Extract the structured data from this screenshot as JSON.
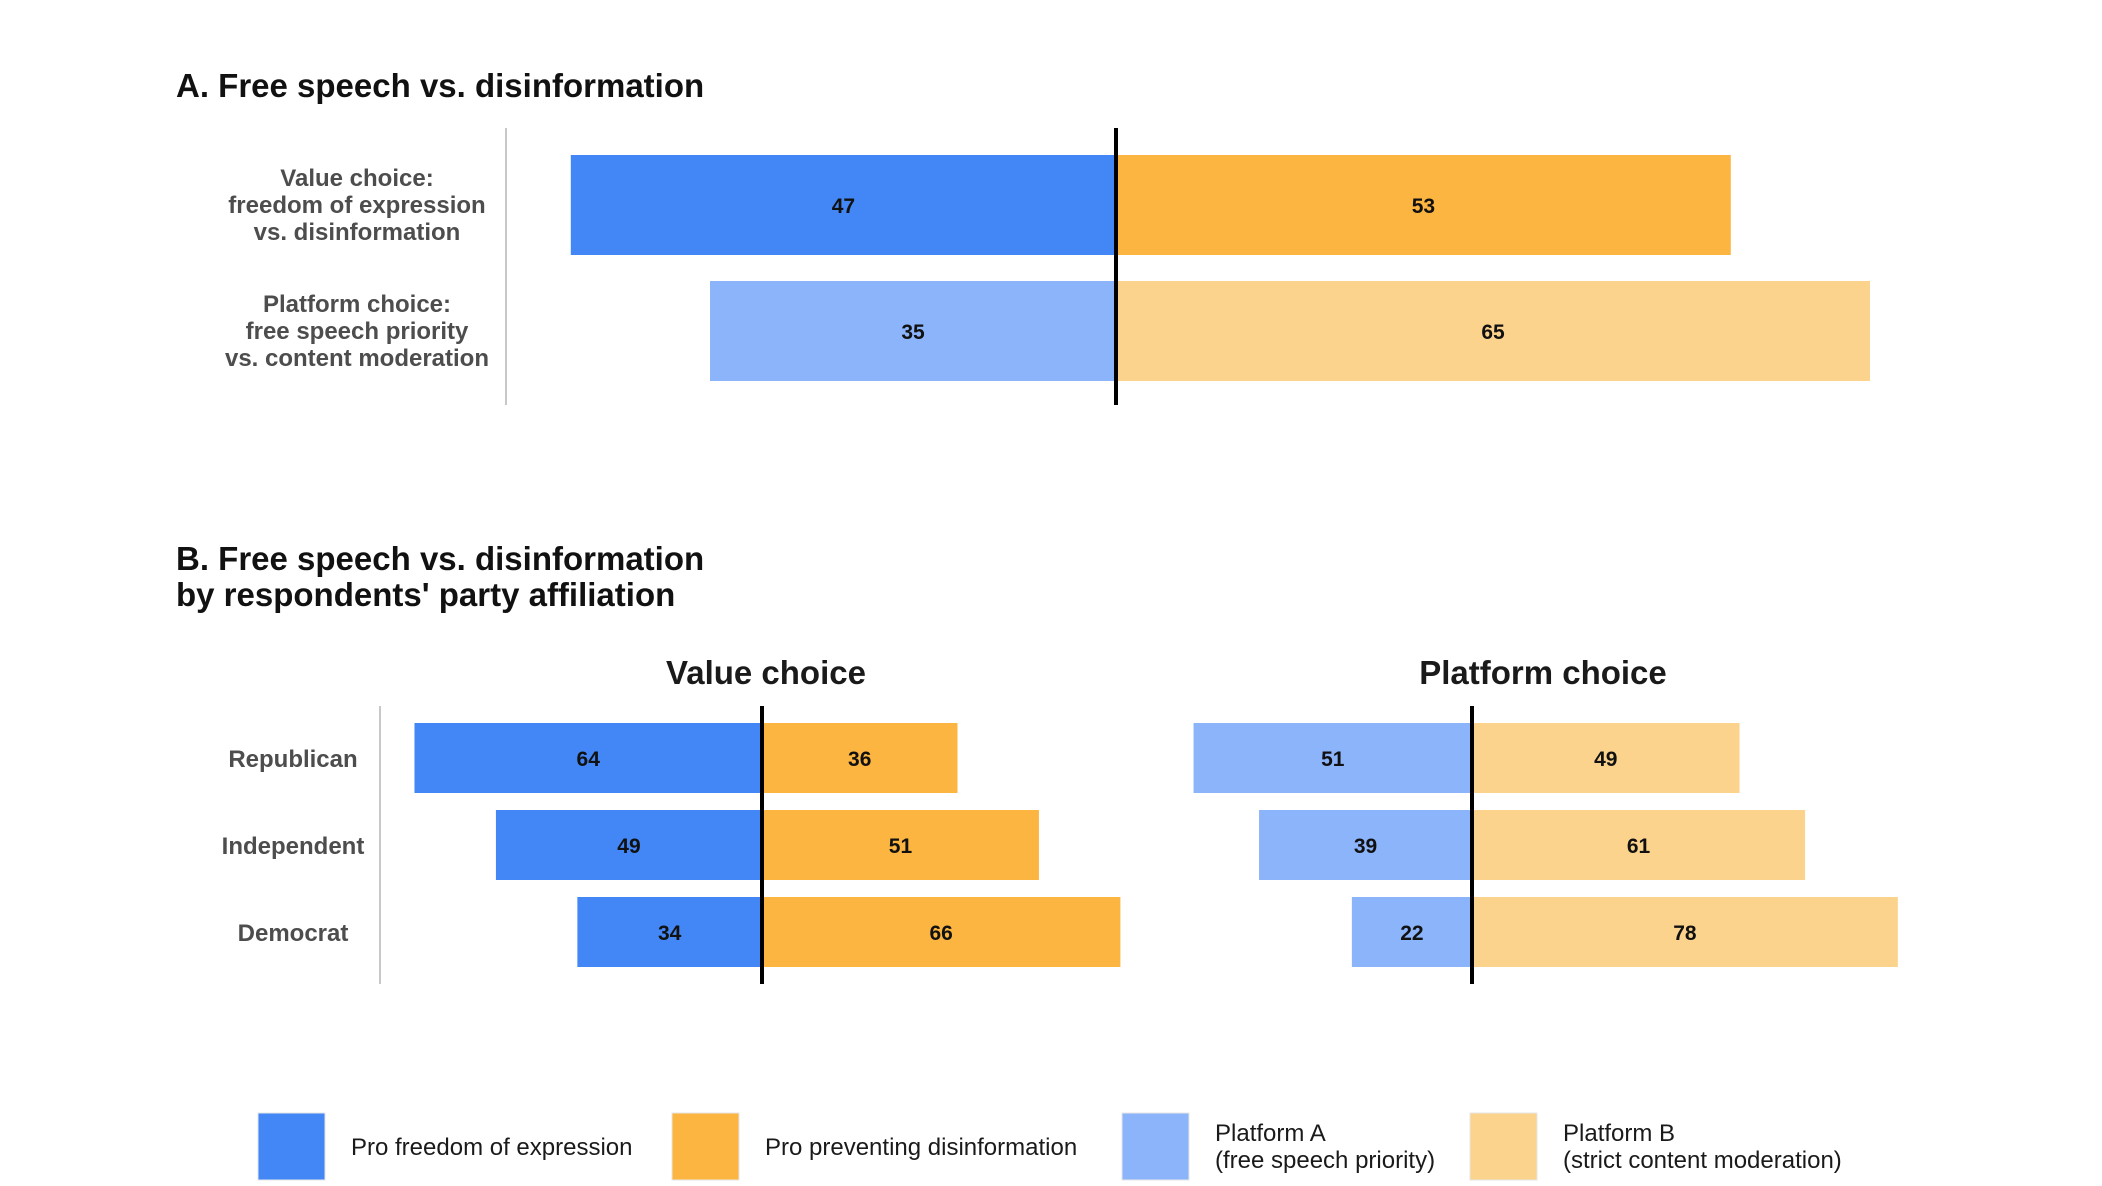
{
  "colors": {
    "pro_freedom": "#4287f5",
    "pro_preventing": "#fbb540",
    "platform_a": "#8cb4fb",
    "platform_b": "#fcd38d",
    "axis_line": "#000000",
    "baseline_rule": "#c8c8c8"
  },
  "panel_a": {
    "title": "A. Free speech vs. disinformation"
  },
  "panel_b": {
    "title_line1": "B. Free speech vs. disinformation",
    "title_line2": "by respondents' party affiliation",
    "facets": {
      "value": "Value choice",
      "platform": "Platform choice"
    }
  },
  "legend": {
    "items": [
      {
        "key": "pro_freedom",
        "lines": [
          "Pro freedom of expression"
        ]
      },
      {
        "key": "pro_preventing",
        "lines": [
          "Pro preventing disinformation"
        ]
      },
      {
        "key": "platform_a",
        "lines": [
          "Platform A",
          "(free speech priority)"
        ]
      },
      {
        "key": "platform_b",
        "lines": [
          "Platform B",
          "(strict content moderation)"
        ]
      }
    ]
  },
  "chart_data": [
    {
      "type": "bar",
      "orientation": "horizontal-diverging",
      "title": "A. Free speech vs. disinformation",
      "categories": [
        [
          "Value choice:",
          "freedom of expression",
          "vs. disinformation"
        ],
        [
          "Platform choice:",
          "free speech priority",
          "vs. content moderation"
        ]
      ],
      "series": [
        {
          "name": "Pro freedom of expression / Platform A (free speech priority)",
          "side": "left",
          "colors": [
            "pro_freedom",
            "platform_a"
          ],
          "values": [
            47,
            35
          ]
        },
        {
          "name": "Pro preventing disinformation / Platform B (strict content moderation)",
          "side": "right",
          "colors": [
            "pro_preventing",
            "platform_b"
          ],
          "values": [
            53,
            65
          ]
        }
      ]
    },
    {
      "type": "bar",
      "orientation": "horizontal-diverging",
      "facet": "Value choice",
      "categories": [
        "Republican",
        "Independent",
        "Democrat"
      ],
      "series": [
        {
          "name": "Pro freedom of expression",
          "side": "left",
          "color": "pro_freedom",
          "values": [
            64,
            49,
            34
          ]
        },
        {
          "name": "Pro preventing disinformation",
          "side": "right",
          "color": "pro_preventing",
          "values": [
            36,
            51,
            66
          ]
        }
      ]
    },
    {
      "type": "bar",
      "orientation": "horizontal-diverging",
      "facet": "Platform choice",
      "categories": [
        "Republican",
        "Independent",
        "Democrat"
      ],
      "series": [
        {
          "name": "Platform A (free speech priority)",
          "side": "left",
          "color": "platform_a",
          "values": [
            51,
            39,
            22
          ]
        },
        {
          "name": "Platform B (strict content moderation)",
          "side": "right",
          "color": "platform_b",
          "values": [
            49,
            61,
            78
          ]
        }
      ]
    }
  ]
}
